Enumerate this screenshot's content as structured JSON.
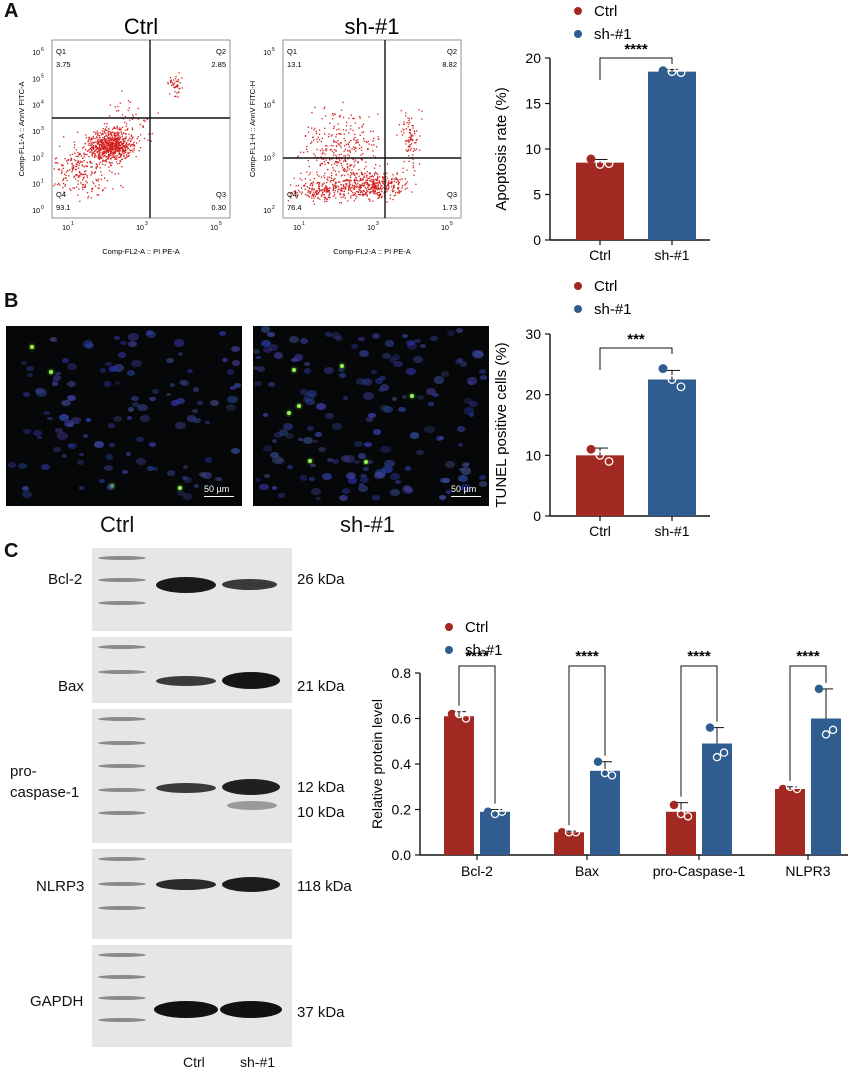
{
  "panels": {
    "a": "A",
    "b": "B",
    "c": "C"
  },
  "flow": {
    "plots": [
      {
        "title": "Ctrl",
        "ylabel": "Comp-FL1-A :: AnnV FITC-A",
        "xlabel": "Comp-FL2-A :: PI PE-A",
        "q1": "Q1",
        "q1v": "3.75",
        "q2": "Q2",
        "q2v": "2.85",
        "q3": "Q3",
        "q3v": "0.30",
        "q4": "Q4",
        "q4v": "93.1"
      },
      {
        "title": "sh-#1",
        "ylabel": "Comp-FL1-H :: AnnV FITC-H",
        "xlabel": "Comp-FL2-A :: PI PE-A",
        "q1": "Q1",
        "q1v": "13.1",
        "q2": "Q2",
        "q2v": "8.82",
        "q3": "Q3",
        "q3v": "1.73",
        "q4": "Q4",
        "q4v": "76.4"
      }
    ],
    "yticks": [
      "10",
      "10",
      "10",
      "10",
      "10",
      "10",
      "10"
    ],
    "yexp": [
      "0",
      "1",
      "2",
      "3",
      "4",
      "5",
      "6"
    ],
    "xticks": [
      "10",
      "10",
      "10"
    ],
    "xexp": [
      "1",
      "3",
      "5"
    ]
  },
  "tunel": {
    "images": [
      {
        "scale": "50 µm"
      },
      {
        "scale": "50 µm"
      }
    ],
    "labels": [
      "Ctrl",
      "sh-#1"
    ]
  },
  "western": {
    "rows": [
      {
        "label": "Bcl-2",
        "kda": [
          "26 kDa"
        ]
      },
      {
        "label": "Bax",
        "kda": [
          "21 kDa"
        ]
      },
      {
        "label": "pro-",
        "label2": "caspase-1",
        "kda": [
          "12 kDa",
          "10 kDa"
        ]
      },
      {
        "label": "NLRP3",
        "kda": [
          "118 kDa"
        ]
      },
      {
        "label": "GAPDH",
        "kda": [
          "37 kDa"
        ]
      }
    ],
    "lanes": [
      "Ctrl",
      "sh-#1"
    ]
  },
  "colors": {
    "ctrl": "#a32a22",
    "sh": "#2f5d8f"
  },
  "chart_data": [
    {
      "type": "bar",
      "categories": [
        "Ctrl",
        "sh-#1"
      ],
      "values": [
        8.5,
        18.5
      ],
      "errors": [
        0.35,
        0.25
      ],
      "points": [
        [
          8.9,
          8.4,
          8.3
        ],
        [
          18.6,
          18.4,
          18.5
        ]
      ],
      "ylabel": "Apoptosis rate (%)",
      "ylim": [
        0,
        20
      ],
      "yticks": [
        "0",
        "5",
        "10",
        "15",
        "20"
      ],
      "legend": [
        "Ctrl",
        "sh-#1"
      ],
      "significance": "****"
    },
    {
      "type": "bar",
      "categories": [
        "Ctrl",
        "sh-#1"
      ],
      "values": [
        10.0,
        22.5
      ],
      "errors": [
        1.2,
        1.5
      ],
      "points": [
        [
          11.0,
          9.0,
          10.0
        ],
        [
          24.3,
          21.3,
          22.5
        ]
      ],
      "ylabel": "TUNEL positive cells (%)",
      "ylim": [
        0,
        30
      ],
      "yticks": [
        "0",
        "10",
        "20",
        "30"
      ],
      "legend": [
        "Ctrl",
        "sh-#1"
      ],
      "significance": "***"
    },
    {
      "type": "bar",
      "categories": [
        "Bcl-2",
        "Bax",
        "pro-Caspase-1",
        "NLPR3"
      ],
      "series": [
        {
          "name": "Ctrl",
          "values": [
            0.61,
            0.1,
            0.19,
            0.29
          ],
          "errors": [
            0.02,
            0.005,
            0.04,
            0.01
          ],
          "points": [
            [
              0.62,
              0.6,
              0.62
            ],
            [
              0.1,
              0.1,
              0.1
            ],
            [
              0.22,
              0.17,
              0.18
            ],
            [
              0.29,
              0.29,
              0.3
            ]
          ]
        },
        {
          "name": "sh-#1",
          "values": [
            0.19,
            0.37,
            0.49,
            0.6
          ],
          "errors": [
            0.01,
            0.04,
            0.07,
            0.13
          ],
          "points": [
            [
              0.19,
              0.19,
              0.18
            ],
            [
              0.41,
              0.35,
              0.36
            ],
            [
              0.56,
              0.45,
              0.43
            ],
            [
              0.73,
              0.55,
              0.53
            ]
          ]
        }
      ],
      "ylabel": "Relative protein level",
      "ylim": [
        0,
        0.8
      ],
      "yticks": [
        "0.0",
        "0.2",
        "0.4",
        "0.6",
        "0.8"
      ],
      "significance": [
        "****",
        "****",
        "****",
        "****"
      ]
    }
  ]
}
